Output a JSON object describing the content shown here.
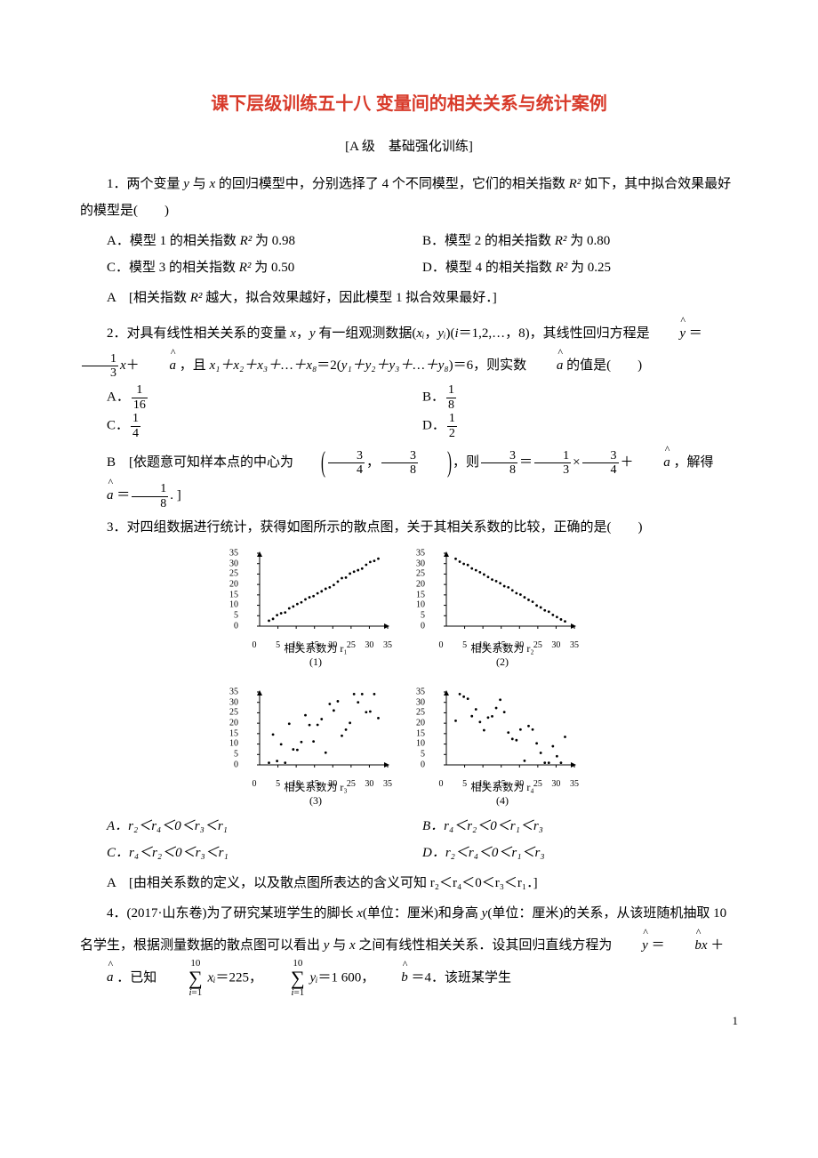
{
  "title": "课下层级训练五十八 变量间的相关关系与统计案例",
  "subtitle": "[A 级　基础强化训练]",
  "q1": {
    "stem1": "1．两个变量 ",
    "stem2": " 与 ",
    "stem3": " 的回归模型中，分别选择了 4 个不同模型，它们的相关指数 ",
    "stem4": " 如下，其中拟合效果最好的模型是(　　)",
    "optA": "A．模型 1 的相关指数 ",
    "optA2": " 为 0.98",
    "optB": "B．模型 2 的相关指数 ",
    "optB2": " 为 0.80",
    "optC": "C．模型 3 的相关指数 ",
    "optC2": " 为 0.50",
    "optD": "D．模型 4 的相关指数 ",
    "optD2": " 为 0.25",
    "ans": "A　[相关指数 ",
    "ans2": " 越大，拟合效果越好，因此模型 1 拟合效果最好．]"
  },
  "q2": {
    "stem1": "2．对具有线性相关关系的变量 ",
    "stem2": "，",
    "stem3": " 有一组观测数据(",
    "stem4": "，",
    "stem5": ")(",
    "stem6": "＝1,2,…，8)，其线性回归方程是 ",
    "stem7": " ＝",
    "stem8": "＋ ",
    "stem9": " ，且 ",
    "stem10": "＝2(",
    "stem11": ")＝6，则实数 ",
    "stem12": " 的值是(　　)",
    "optA": "A．",
    "optB": "B．",
    "optC": "C．",
    "optD": "D．",
    "ans1": "B　[依题意可知样本点的中心为",
    "ans2": "，则",
    "ans3": "＝",
    "ans4": "×",
    "ans5": "＋ ",
    "ans6": " ，解得 ",
    "ans7": " ＝",
    "ans8": ". ]",
    "xsum": "x₁＋x₂＋x₃＋…＋x₈",
    "ysum": "y₁＋y₂＋y₃＋…＋y₈"
  },
  "q3": {
    "stem": "3．对四组数据进行统计，获得如图所示的散点图，关于其相关系数的比较，正确的是(　　)",
    "optA": "A．r₂＜r₄＜0＜r₃＜r₁",
    "optB": "B．r₄＜r₂＜0＜r₁＜r₃",
    "optC": "C．r₄＜r₂＜0＜r₃＜r₁",
    "optD": "D．r₂＜r₄＜0＜r₁＜r₃",
    "ans": "A　[由相关系数的定义，以及散点图所表达的含义可知 r₂＜r₄＜0＜r₃＜r₁．]"
  },
  "q4": {
    "stem1": "4．(2017·山东卷)为了研究某班学生的脚长 ",
    "stem2": "(单位：厘米)和身高 ",
    "stem3": "(单位：厘米)的关系，从该班随机抽取 10 名学生，根据测量数据的散点图可以看出 ",
    "stem4": " 与 ",
    "stem5": " 之间有线性相关关系．设其回归直线方程为 ",
    "stem6": " ＝ ",
    "stem7": " ＋ ",
    "stem8": " ．已知 ",
    "stem9": "＝225，",
    "stem10": "＝1 600，",
    "stem11": " ＝4．该班某学生"
  },
  "chart": {
    "yticks": [
      "35",
      "30",
      "25",
      "20",
      "15",
      "10",
      "5",
      "0"
    ],
    "xticks": [
      "5",
      "10",
      "15",
      "20",
      "25",
      "30",
      "35"
    ],
    "panels": [
      {
        "label": "相关系数为 r₁",
        "sub": "(1)",
        "corr": 0.98,
        "slope": 1
      },
      {
        "label": "相关系数为 r₂",
        "sub": "(2)",
        "corr": 0.98,
        "slope": -1
      },
      {
        "label": "相关系数为 r₃",
        "sub": "(3)",
        "corr": 0.55,
        "slope": 1
      },
      {
        "label": "相关系数为 r₄",
        "sub": "(4)",
        "corr": 0.55,
        "slope": -1
      }
    ],
    "n_points": 28,
    "point_color": "#000000",
    "axis_color": "#000000",
    "bg": "#ffffff",
    "width": 170,
    "height": 100,
    "xlim": [
      0,
      35
    ],
    "ylim": [
      0,
      35
    ]
  },
  "page_num": "1"
}
